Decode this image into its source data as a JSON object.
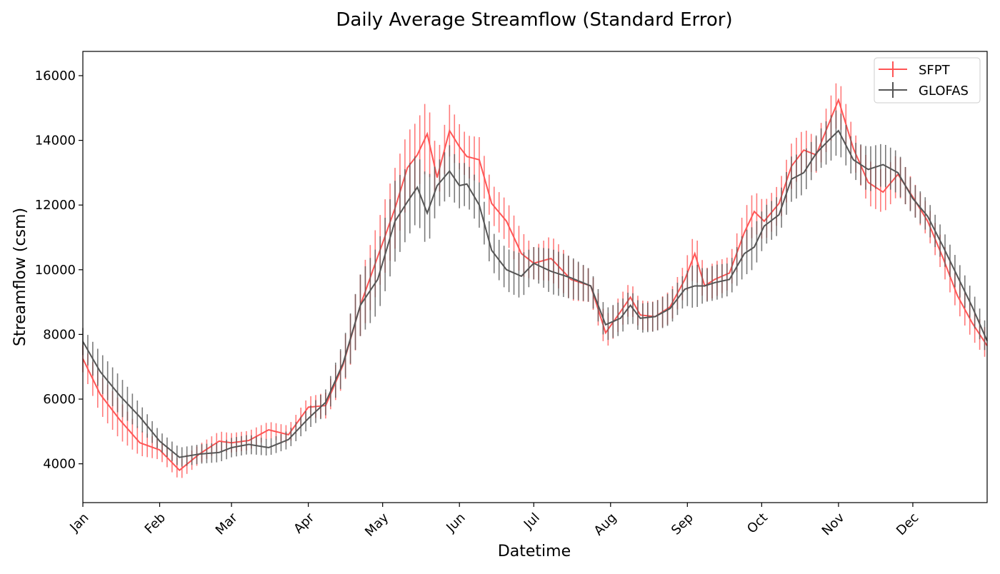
{
  "chart_data": {
    "type": "line",
    "title": "Daily Average Streamflow (Standard Error)",
    "xlabel": "Datetime",
    "ylabel": "Streamflow (csm)",
    "ylim": [
      2800,
      16750
    ],
    "yticks": [
      4000,
      6000,
      8000,
      10000,
      12000,
      14000,
      16000
    ],
    "xlim": [
      1,
      366
    ],
    "xticks": [
      {
        "label": "Jan",
        "day": 1
      },
      {
        "label": "Feb",
        "day": 32
      },
      {
        "label": "Mar",
        "day": 61
      },
      {
        "label": "Apr",
        "day": 92
      },
      {
        "label": "May",
        "day": 122
      },
      {
        "label": "Jun",
        "day": 153
      },
      {
        "label": "Jul",
        "day": 183
      },
      {
        "label": "Aug",
        "day": 214
      },
      {
        "label": "Sep",
        "day": 245
      },
      {
        "label": "Oct",
        "day": 275
      },
      {
        "label": "Nov",
        "day": 306
      },
      {
        "label": "Dec",
        "day": 336
      }
    ],
    "grid": false,
    "legend_position": "top-right",
    "series": [
      {
        "name": "SFPT",
        "color": "#ff5555",
        "x": [
          1,
          8,
          16,
          24,
          32,
          40,
          48,
          56,
          61,
          68,
          76,
          84,
          92,
          99,
          106,
          113,
          120,
          127,
          132,
          136,
          140,
          144,
          149,
          153,
          156,
          161,
          166,
          172,
          178,
          183,
          190,
          198,
          206,
          212,
          218,
          222,
          226,
          232,
          238,
          244,
          248,
          252,
          256,
          262,
          268,
          272,
          276,
          282,
          287,
          292,
          297,
          302,
          306,
          312,
          318,
          324,
          330,
          336,
          342,
          348,
          354,
          360,
          366
        ],
        "y": [
          7250,
          6150,
          5350,
          4650,
          4430,
          3800,
          4300,
          4700,
          4650,
          4720,
          5050,
          4900,
          5750,
          5800,
          7050,
          8900,
          10400,
          11900,
          13150,
          13550,
          14200,
          12850,
          14300,
          13800,
          13500,
          13400,
          12050,
          11500,
          10500,
          10200,
          10350,
          9700,
          9500,
          8050,
          8700,
          9150,
          8600,
          8550,
          8850,
          9700,
          10500,
          9500,
          9700,
          9900,
          11150,
          11800,
          11500,
          12050,
          13200,
          13700,
          13550,
          14500,
          15250,
          13750,
          12700,
          12400,
          12950,
          12250,
          11500,
          10400,
          9200,
          8350,
          7650
        ],
        "err": [
          420,
          600,
          600,
          400,
          300,
          300,
          300,
          300,
          300,
          300,
          250,
          280,
          320,
          400,
          650,
          950,
          1050,
          1250,
          1100,
          1050,
          1100,
          700,
          800,
          700,
          650,
          700,
          600,
          650,
          700,
          500,
          700,
          650,
          500,
          500,
          520,
          480,
          450,
          460,
          500,
          500,
          700,
          500,
          550,
          500,
          700,
          650,
          600,
          600,
          700,
          650,
          550,
          700,
          700,
          550,
          700,
          650,
          650,
          500,
          500,
          500,
          500,
          500,
          450
        ]
      },
      {
        "name": "GLOFAS",
        "color": "#555555",
        "x": [
          1,
          8,
          16,
          24,
          32,
          40,
          48,
          56,
          61,
          68,
          76,
          84,
          92,
          99,
          106,
          113,
          120,
          127,
          132,
          136,
          140,
          144,
          149,
          153,
          156,
          161,
          166,
          172,
          178,
          183,
          190,
          198,
          206,
          212,
          218,
          222,
          226,
          232,
          238,
          244,
          248,
          252,
          256,
          262,
          268,
          272,
          276,
          282,
          287,
          292,
          297,
          302,
          306,
          312,
          318,
          324,
          330,
          336,
          342,
          348,
          354,
          360,
          366
        ],
        "y": [
          7780,
          6850,
          6100,
          5450,
          4700,
          4200,
          4300,
          4350,
          4500,
          4600,
          4500,
          4750,
          5400,
          5900,
          7100,
          8900,
          9700,
          11500,
          12100,
          12550,
          11750,
          12600,
          13050,
          12600,
          12650,
          12000,
          10600,
          10000,
          9800,
          10200,
          9950,
          9750,
          9500,
          8300,
          8500,
          8900,
          8500,
          8550,
          8800,
          9400,
          9500,
          9500,
          9600,
          9700,
          10500,
          10700,
          11350,
          11700,
          12800,
          13000,
          13600,
          14000,
          14300,
          13400,
          13100,
          13250,
          13000,
          12200,
          11650,
          10750,
          9800,
          8850,
          7800
        ],
        "err": [
          420,
          600,
          600,
          400,
          300,
          300,
          300,
          300,
          300,
          300,
          250,
          280,
          320,
          400,
          650,
          950,
          1050,
          1250,
          1100,
          1050,
          1100,
          700,
          800,
          700,
          650,
          700,
          600,
          650,
          700,
          500,
          700,
          650,
          500,
          500,
          520,
          480,
          450,
          460,
          500,
          500,
          700,
          500,
          550,
          500,
          700,
          650,
          600,
          600,
          700,
          650,
          550,
          700,
          700,
          550,
          700,
          650,
          650,
          500,
          500,
          500,
          500,
          500,
          450
        ]
      }
    ]
  }
}
